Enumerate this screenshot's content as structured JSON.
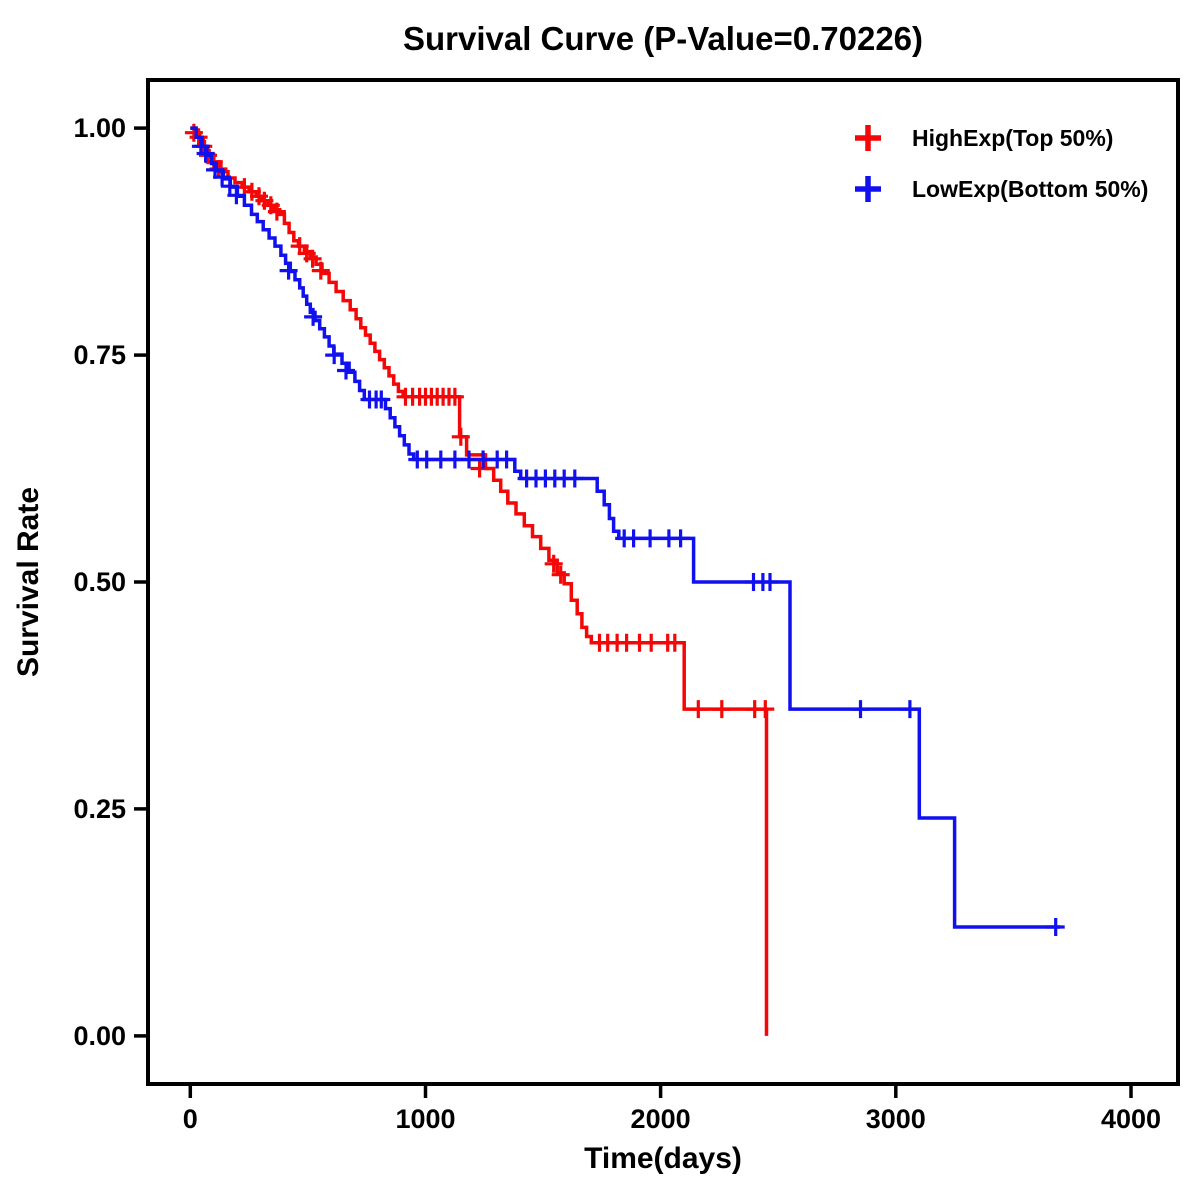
{
  "page": {
    "background": "#ffffff"
  },
  "chart_data": {
    "type": "line",
    "subtype": "kaplan-meier-step-survival",
    "title": "Survival Curve (P-Value=0.70226)",
    "xlabel": "Time(days)",
    "ylabel": "Survival Rate",
    "grid": false,
    "legend_position": "top-right-inside",
    "xlim": [
      -180,
      4200
    ],
    "ylim": [
      -0.053,
      1.053
    ],
    "x_ticks": [
      {
        "v": 0,
        "label": "0"
      },
      {
        "v": 1000,
        "label": "1000"
      },
      {
        "v": 2000,
        "label": "2000"
      },
      {
        "v": 3000,
        "label": "3000"
      },
      {
        "v": 4000,
        "label": "4000"
      }
    ],
    "y_ticks": [
      {
        "v": 0.0,
        "label": "0.00"
      },
      {
        "v": 0.25,
        "label": "0.25"
      },
      {
        "v": 0.5,
        "label": "0.50"
      },
      {
        "v": 0.75,
        "label": "0.75"
      },
      {
        "v": 1.0,
        "label": "1.00"
      }
    ],
    "series": [
      {
        "name": "HighExp(Top 50%)",
        "color": "#f40707",
        "steps": [
          [
            0,
            1.0
          ],
          [
            20,
            0.995
          ],
          [
            40,
            0.985
          ],
          [
            60,
            0.975
          ],
          [
            80,
            0.968
          ],
          [
            100,
            0.96
          ],
          [
            130,
            0.952
          ],
          [
            160,
            0.945
          ],
          [
            190,
            0.94
          ],
          [
            220,
            0.935
          ],
          [
            250,
            0.93
          ],
          [
            280,
            0.925
          ],
          [
            305,
            0.92
          ],
          [
            330,
            0.915
          ],
          [
            355,
            0.91
          ],
          [
            380,
            0.905
          ],
          [
            400,
            0.895
          ],
          [
            420,
            0.885
          ],
          [
            440,
            0.876
          ],
          [
            460,
            0.87
          ],
          [
            485,
            0.864
          ],
          [
            510,
            0.858
          ],
          [
            535,
            0.85
          ],
          [
            560,
            0.84
          ],
          [
            590,
            0.83
          ],
          [
            620,
            0.82
          ],
          [
            650,
            0.81
          ],
          [
            680,
            0.8
          ],
          [
            705,
            0.79
          ],
          [
            725,
            0.78
          ],
          [
            745,
            0.772
          ],
          [
            765,
            0.763
          ],
          [
            785,
            0.754
          ],
          [
            805,
            0.745
          ],
          [
            825,
            0.736
          ],
          [
            845,
            0.727
          ],
          [
            865,
            0.718
          ],
          [
            885,
            0.71
          ],
          [
            905,
            0.704
          ],
          [
            1145,
            0.66
          ],
          [
            1175,
            0.64
          ],
          [
            1255,
            0.625
          ],
          [
            1290,
            0.612
          ],
          [
            1320,
            0.6
          ],
          [
            1350,
            0.587
          ],
          [
            1385,
            0.575
          ],
          [
            1420,
            0.562
          ],
          [
            1455,
            0.55
          ],
          [
            1490,
            0.537
          ],
          [
            1525,
            0.524
          ],
          [
            1560,
            0.51
          ],
          [
            1590,
            0.498
          ],
          [
            1620,
            0.48
          ],
          [
            1645,
            0.465
          ],
          [
            1665,
            0.45
          ],
          [
            1685,
            0.44
          ],
          [
            1705,
            0.433
          ],
          [
            2100,
            0.36
          ],
          [
            2450,
            0.0
          ]
        ],
        "censors": [
          [
            15,
            0.995
          ],
          [
            35,
            0.99
          ],
          [
            55,
            0.98
          ],
          [
            75,
            0.97
          ],
          [
            100,
            0.963
          ],
          [
            120,
            0.955
          ],
          [
            230,
            0.935
          ],
          [
            262,
            0.93
          ],
          [
            292,
            0.925
          ],
          [
            315,
            0.92
          ],
          [
            342,
            0.915
          ],
          [
            368,
            0.908
          ],
          [
            465,
            0.87
          ],
          [
            495,
            0.862
          ],
          [
            520,
            0.856
          ],
          [
            555,
            0.843
          ],
          [
            915,
            0.704
          ],
          [
            945,
            0.704
          ],
          [
            975,
            0.704
          ],
          [
            1000,
            0.704
          ],
          [
            1025,
            0.704
          ],
          [
            1050,
            0.704
          ],
          [
            1075,
            0.704
          ],
          [
            1100,
            0.704
          ],
          [
            1125,
            0.704
          ],
          [
            1150,
            0.66
          ],
          [
            1230,
            0.625
          ],
          [
            1545,
            0.52
          ],
          [
            1575,
            0.508
          ],
          [
            1740,
            0.433
          ],
          [
            1775,
            0.433
          ],
          [
            1815,
            0.433
          ],
          [
            1855,
            0.433
          ],
          [
            1910,
            0.433
          ],
          [
            1960,
            0.433
          ],
          [
            2030,
            0.433
          ],
          [
            2060,
            0.433
          ],
          [
            2160,
            0.36
          ],
          [
            2260,
            0.36
          ],
          [
            2400,
            0.36
          ],
          [
            2445,
            0.36
          ]
        ]
      },
      {
        "name": "LowExp(Bottom 50%)",
        "color": "#1111ef",
        "steps": [
          [
            0,
            1.0
          ],
          [
            25,
            0.99
          ],
          [
            50,
            0.98
          ],
          [
            70,
            0.97
          ],
          [
            90,
            0.961
          ],
          [
            110,
            0.953
          ],
          [
            140,
            0.944
          ],
          [
            170,
            0.935
          ],
          [
            200,
            0.925
          ],
          [
            230,
            0.915
          ],
          [
            260,
            0.905
          ],
          [
            285,
            0.897
          ],
          [
            310,
            0.888
          ],
          [
            335,
            0.879
          ],
          [
            360,
            0.87
          ],
          [
            385,
            0.86
          ],
          [
            405,
            0.851
          ],
          [
            425,
            0.842
          ],
          [
            445,
            0.833
          ],
          [
            465,
            0.824
          ],
          [
            480,
            0.815
          ],
          [
            495,
            0.806
          ],
          [
            510,
            0.797
          ],
          [
            530,
            0.788
          ],
          [
            550,
            0.779
          ],
          [
            570,
            0.77
          ],
          [
            590,
            0.76
          ],
          [
            610,
            0.751
          ],
          [
            645,
            0.741
          ],
          [
            675,
            0.731
          ],
          [
            700,
            0.721
          ],
          [
            720,
            0.711
          ],
          [
            740,
            0.701
          ],
          [
            830,
            0.691
          ],
          [
            850,
            0.681
          ],
          [
            870,
            0.671
          ],
          [
            890,
            0.661
          ],
          [
            910,
            0.651
          ],
          [
            930,
            0.641
          ],
          [
            950,
            0.635
          ],
          [
            1380,
            0.622
          ],
          [
            1405,
            0.614
          ],
          [
            1730,
            0.6
          ],
          [
            1760,
            0.585
          ],
          [
            1782,
            0.57
          ],
          [
            1800,
            0.556
          ],
          [
            1822,
            0.548
          ],
          [
            2140,
            0.5
          ],
          [
            2550,
            0.36
          ],
          [
            3100,
            0.24
          ],
          [
            3250,
            0.12
          ],
          [
            3700,
            0.12
          ]
        ],
        "censors": [
          [
            45,
            0.98
          ],
          [
            65,
            0.972
          ],
          [
            105,
            0.954
          ],
          [
            135,
            0.946
          ],
          [
            168,
            0.936
          ],
          [
            196,
            0.926
          ],
          [
            418,
            0.843
          ],
          [
            522,
            0.792
          ],
          [
            612,
            0.75
          ],
          [
            662,
            0.733
          ],
          [
            762,
            0.701
          ],
          [
            790,
            0.701
          ],
          [
            812,
            0.701
          ],
          [
            965,
            0.635
          ],
          [
            1005,
            0.635
          ],
          [
            1065,
            0.635
          ],
          [
            1125,
            0.635
          ],
          [
            1185,
            0.635
          ],
          [
            1245,
            0.635
          ],
          [
            1305,
            0.635
          ],
          [
            1345,
            0.635
          ],
          [
            1430,
            0.614
          ],
          [
            1470,
            0.614
          ],
          [
            1510,
            0.614
          ],
          [
            1550,
            0.614
          ],
          [
            1590,
            0.614
          ],
          [
            1635,
            0.614
          ],
          [
            1845,
            0.548
          ],
          [
            1885,
            0.548
          ],
          [
            1955,
            0.548
          ],
          [
            2035,
            0.548
          ],
          [
            2085,
            0.548
          ],
          [
            2395,
            0.5
          ],
          [
            2435,
            0.5
          ],
          [
            2465,
            0.5
          ],
          [
            2850,
            0.36
          ],
          [
            3060,
            0.36
          ],
          [
            3680,
            0.12
          ]
        ]
      }
    ]
  }
}
